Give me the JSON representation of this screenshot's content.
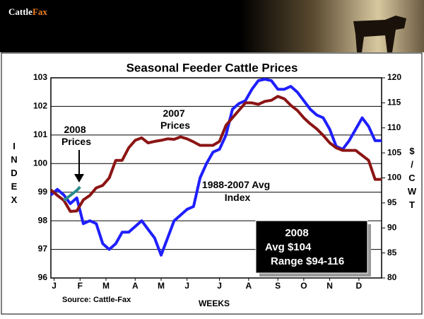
{
  "header": {
    "logo": [
      "Cattle",
      "Fax"
    ]
  },
  "chart_data": {
    "type": "line",
    "title": "Seasonal Feeder Cattle Prices",
    "y_label": "INDEX",
    "y2_label": "$/CWT",
    "x_label": "WEEKS",
    "source": "Source: Cattle-Fax",
    "xlim": [
      1,
      52
    ],
    "xticks": [
      {
        "value": 1.5,
        "label": "J"
      },
      {
        "value": 5.5,
        "label": "F"
      },
      {
        "value": 9.5,
        "label": "M"
      },
      {
        "value": 14,
        "label": "A"
      },
      {
        "value": 18,
        "label": "M"
      },
      {
        "value": 22,
        "label": "J"
      },
      {
        "value": 27,
        "label": "J"
      },
      {
        "value": 31.5,
        "label": "A"
      },
      {
        "value": 36,
        "label": "S"
      },
      {
        "value": 40,
        "label": "O"
      },
      {
        "value": 44,
        "label": "N"
      },
      {
        "value": 48.5,
        "label": "D"
      }
    ],
    "ylim": [
      96,
      103
    ],
    "yticks": [
      96,
      97,
      98,
      99,
      100,
      101,
      102,
      103
    ],
    "y2lim": [
      80,
      120
    ],
    "y2ticks": [
      80,
      85,
      90,
      95,
      100,
      105,
      110,
      115,
      120
    ],
    "grid": true,
    "series": [
      {
        "name": "1988-2007 Avg Index",
        "color": "#1f1fff",
        "x": [
          1,
          2,
          3,
          4,
          5,
          6,
          7,
          8,
          9,
          10,
          11,
          12,
          13,
          14,
          15,
          16,
          17,
          18,
          19,
          20,
          21,
          22,
          23,
          24,
          25,
          26,
          27,
          28,
          29,
          30,
          31,
          32,
          33,
          34,
          35,
          36,
          37,
          38,
          39,
          40,
          41,
          42,
          43,
          44,
          45,
          46,
          47,
          48,
          49,
          50,
          51,
          52
        ],
        "values": [
          98.9,
          99.1,
          98.9,
          98.6,
          98.8,
          97.9,
          98.0,
          97.9,
          97.2,
          97.0,
          97.2,
          97.6,
          97.6,
          97.8,
          98.0,
          97.7,
          97.4,
          96.8,
          97.4,
          98.0,
          98.2,
          98.4,
          98.5,
          99.5,
          100.0,
          100.4,
          100.5,
          101.0,
          101.9,
          102.1,
          102.2,
          102.6,
          102.9,
          102.95,
          102.9,
          102.6,
          102.6,
          102.7,
          102.5,
          102.2,
          101.9,
          101.7,
          101.6,
          101.2,
          100.6,
          100.5,
          100.8,
          101.2,
          101.6,
          101.3,
          100.8,
          100.8
        ]
      },
      {
        "name": "2007 Prices",
        "color": "#8b1414",
        "axis": "y2",
        "x": [
          1,
          2,
          3,
          4,
          5,
          6,
          7,
          8,
          9,
          10,
          11,
          12,
          13,
          14,
          15,
          16,
          17,
          18,
          19,
          20,
          21,
          22,
          23,
          24,
          25,
          26,
          27,
          28,
          29,
          30,
          31,
          32,
          33,
          34,
          35,
          36,
          37,
          38,
          39,
          40,
          41,
          42,
          43,
          44,
          45,
          46,
          47,
          48,
          49,
          50,
          51,
          52
        ],
        "values": [
          97.6,
          96.5,
          95.5,
          93.3,
          93.4,
          95.6,
          96.5,
          98,
          98.5,
          100,
          103.5,
          103.5,
          106,
          107.5,
          108,
          107,
          107.3,
          107.5,
          107.8,
          107.7,
          108.2,
          107.8,
          107.2,
          106.5,
          106.5,
          106.5,
          107.3,
          110.5,
          112,
          113.5,
          115,
          115,
          114.7,
          115.3,
          115.5,
          116.3,
          115.8,
          114.5,
          113.5,
          112,
          110.8,
          109.8,
          108.5,
          107,
          106,
          105.5,
          105.5,
          105.5,
          104.5,
          103.5,
          99.7,
          99.7
        ]
      },
      {
        "name": "2008 Prices",
        "color": "#2a8c8c",
        "axis": "y2",
        "x": [
          3,
          4,
          5,
          5.5
        ],
        "values": [
          95.5,
          96.5,
          97.5,
          98.2
        ]
      }
    ],
    "summary_box": [
      "2008",
      "Avg $104",
      "Range $94-116"
    ]
  }
}
